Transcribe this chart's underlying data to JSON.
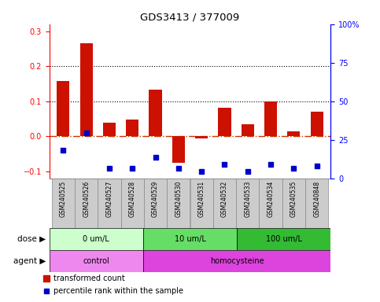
{
  "title": "GDS3413 / 377009",
  "samples": [
    "GSM240525",
    "GSM240526",
    "GSM240527",
    "GSM240528",
    "GSM240529",
    "GSM240530",
    "GSM240531",
    "GSM240532",
    "GSM240533",
    "GSM240534",
    "GSM240535",
    "GSM240848"
  ],
  "transformed_count": [
    0.158,
    0.265,
    0.038,
    0.048,
    0.133,
    -0.075,
    -0.005,
    0.082,
    0.035,
    0.1,
    0.015,
    0.07
  ],
  "percentile_rank_y": [
    -0.04,
    0.01,
    -0.09,
    -0.09,
    -0.06,
    -0.09,
    -0.1,
    -0.08,
    -0.1,
    -0.08,
    -0.09,
    -0.085
  ],
  "red_bar_color": "#cc1100",
  "blue_dot_color": "#0000cc",
  "ylim": [
    -0.12,
    0.32
  ],
  "yticks": [
    -0.1,
    0.0,
    0.1,
    0.2,
    0.3
  ],
  "y2lim": [
    0,
    100
  ],
  "y2ticks": [
    0,
    25,
    50,
    75,
    100
  ],
  "hlines": [
    0.1,
    0.2
  ],
  "zero_line_color": "#cc3300",
  "dose_groups": [
    {
      "label": "0 um/L",
      "start": 0,
      "end": 4,
      "color": "#ccffcc"
    },
    {
      "label": "10 um/L",
      "start": 4,
      "end": 8,
      "color": "#66dd66"
    },
    {
      "label": "100 um/L",
      "start": 8,
      "end": 12,
      "color": "#33bb33"
    }
  ],
  "agent_groups": [
    {
      "label": "control",
      "start": 0,
      "end": 4,
      "color": "#ee88ee"
    },
    {
      "label": "homocysteine",
      "start": 4,
      "end": 12,
      "color": "#dd44dd"
    }
  ],
  "dose_label": "dose",
  "agent_label": "agent",
  "legend_red": "transformed count",
  "legend_blue": "percentile rank within the sample",
  "background_color": "#ffffff",
  "bar_width": 0.55,
  "sample_box_color": "#cccccc",
  "sample_box_edge": "#888888"
}
